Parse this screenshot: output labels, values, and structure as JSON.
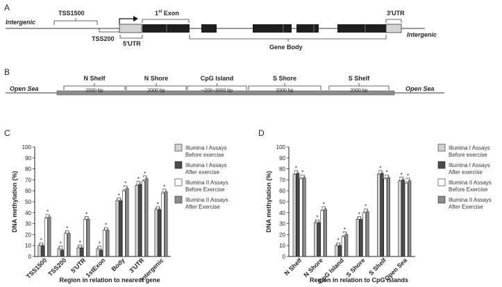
{
  "panel_a": {
    "letter": "A",
    "labels": {
      "tss1500": "TSS1500",
      "tss200": "TSS200",
      "utr5": "5'UTR",
      "exon_sup": "st",
      "exon_pre": "1",
      "exon_post": " Exon",
      "utr3": "3'UTR",
      "gene_body": "Gene Body",
      "intergenic_left": "Intergenic",
      "intergenic_right": "Intergenic"
    }
  },
  "panel_b": {
    "letter": "B",
    "open_sea_left": "Open Sea",
    "open_sea_right": "Open Sea",
    "regions": [
      {
        "name": "N Shelf",
        "size": "2000 bp"
      },
      {
        "name": "N Shore",
        "size": "2000 bp"
      },
      {
        "name": "CpG Island",
        "size": "~200~3000 bp"
      },
      {
        "name": "S Shore",
        "size": "2000 bp"
      },
      {
        "name": "S Shelf",
        "size": "2000 bp"
      }
    ]
  },
  "legend_entries": [
    {
      "line1": "Illumina I Assays",
      "line2": "Before exercise",
      "color": "#d2d2d2"
    },
    {
      "line1": "Illumina I Assays",
      "line2": "After exercise",
      "color": "#4a4a4a"
    },
    {
      "line1": "Illumina II Assays",
      "line2": "Before Exercise",
      "color": "#ffffff"
    },
    {
      "line1": "Illumina II Assays",
      "line2": "After Exercise",
      "color": "#8c8c8c"
    }
  ],
  "chart_data": [
    {
      "type": "bar",
      "panel": "C",
      "ylabel": "DNA methylation (%)",
      "xlabel": "Region in relation to nearest gene",
      "ylim": [
        0,
        100
      ],
      "yticks": [
        0,
        10,
        20,
        30,
        40,
        50,
        60,
        70,
        80,
        90,
        100
      ],
      "categories": [
        "TSS1500",
        "TSS200",
        "5'UTR",
        "1stExon",
        "Body",
        "3'UTR",
        "Intergenic"
      ],
      "series": [
        {
          "values": [
            10,
            7,
            8,
            7,
            51,
            65,
            43
          ]
        },
        {
          "values": [
            10,
            6,
            8,
            6,
            51,
            66,
            43
          ]
        },
        {
          "values": [
            35,
            21,
            34,
            24,
            60,
            69,
            58
          ]
        },
        {
          "values": [
            36,
            21,
            34,
            24,
            62,
            71,
            59
          ]
        }
      ],
      "significance": [
        "*",
        "*",
        "*",
        "*",
        "*",
        "*",
        "*"
      ],
      "legend_position": "right"
    },
    {
      "type": "bar",
      "panel": "D",
      "ylabel": "DNA methylation (%)",
      "xlabel": "Region in relation to CpG islands",
      "ylim": [
        0,
        100
      ],
      "yticks": [
        0,
        10,
        20,
        30,
        40,
        50,
        60,
        70,
        80,
        90,
        100
      ],
      "categories": [
        "N Shelf",
        "N Shore",
        "CpG Island",
        "S Shore",
        "S Shelf",
        "Open Sea"
      ],
      "series": [
        {
          "values": [
            75,
            31,
            10,
            34,
            75,
            69
          ]
        },
        {
          "values": [
            76,
            31,
            10,
            34,
            76,
            70
          ]
        },
        {
          "values": [
            71,
            42,
            18,
            40,
            71,
            67
          ]
        },
        {
          "values": [
            72,
            43,
            20,
            41,
            72,
            69
          ]
        }
      ],
      "significance": [
        "*",
        "*",
        "*",
        "*",
        "*",
        "*"
      ],
      "legend_position": "right"
    }
  ]
}
